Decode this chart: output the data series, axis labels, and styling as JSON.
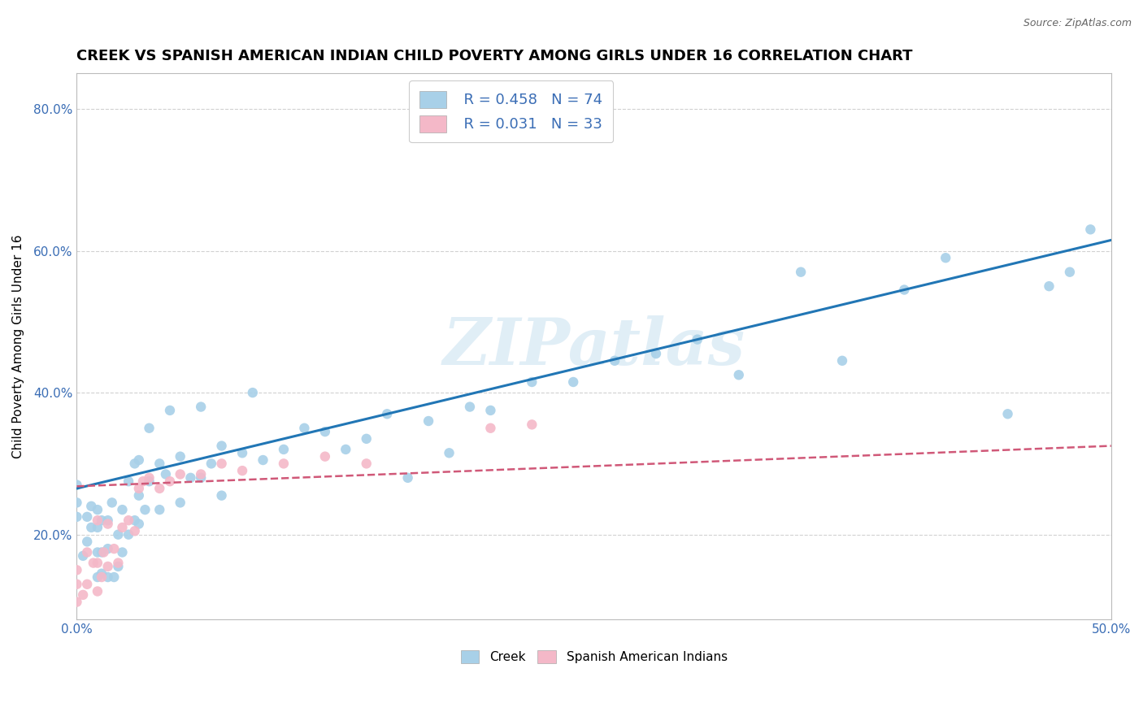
{
  "title": "CREEK VS SPANISH AMERICAN INDIAN CHILD POVERTY AMONG GIRLS UNDER 16 CORRELATION CHART",
  "source": "Source: ZipAtlas.com",
  "ylabel": "Child Poverty Among Girls Under 16",
  "xlim": [
    0.0,
    0.5
  ],
  "ylim": [
    0.08,
    0.85
  ],
  "xticks": [
    0.0,
    0.05,
    0.1,
    0.15,
    0.2,
    0.25,
    0.3,
    0.35,
    0.4,
    0.45,
    0.5
  ],
  "xticklabels": [
    "0.0%",
    "",
    "",
    "",
    "",
    "",
    "",
    "",
    "",
    "",
    "50.0%"
  ],
  "yticks": [
    0.2,
    0.4,
    0.6,
    0.8
  ],
  "yticklabels": [
    "20.0%",
    "40.0%",
    "60.0%",
    "80.0%"
  ],
  "creek_color": "#a8d0e8",
  "sai_color": "#f4b8c8",
  "creek_line_color": "#2176b5",
  "sai_line_color": "#d05878",
  "watermark": "ZIPatlas",
  "legend_R_creek": "R = 0.458",
  "legend_N_creek": "N = 74",
  "legend_R_sai": "R = 0.031",
  "legend_N_sai": "N = 33",
  "creek_line_x0": 0.0,
  "creek_line_y0": 0.265,
  "creek_line_x1": 0.5,
  "creek_line_y1": 0.615,
  "sai_line_x0": 0.0,
  "sai_line_y0": 0.268,
  "sai_line_x1": 0.5,
  "sai_line_y1": 0.325,
  "creek_scatter_x": [
    0.0,
    0.0,
    0.0,
    0.003,
    0.005,
    0.005,
    0.007,
    0.007,
    0.01,
    0.01,
    0.01,
    0.01,
    0.012,
    0.012,
    0.012,
    0.015,
    0.015,
    0.015,
    0.017,
    0.018,
    0.02,
    0.02,
    0.022,
    0.022,
    0.025,
    0.025,
    0.028,
    0.028,
    0.03,
    0.03,
    0.03,
    0.033,
    0.035,
    0.035,
    0.04,
    0.04,
    0.043,
    0.045,
    0.05,
    0.05,
    0.055,
    0.06,
    0.06,
    0.065,
    0.07,
    0.07,
    0.08,
    0.085,
    0.09,
    0.1,
    0.11,
    0.12,
    0.13,
    0.14,
    0.15,
    0.16,
    0.17,
    0.18,
    0.19,
    0.2,
    0.22,
    0.24,
    0.26,
    0.28,
    0.3,
    0.32,
    0.35,
    0.37,
    0.4,
    0.42,
    0.45,
    0.47,
    0.48,
    0.49
  ],
  "creek_scatter_y": [
    0.225,
    0.245,
    0.27,
    0.17,
    0.19,
    0.225,
    0.21,
    0.24,
    0.14,
    0.175,
    0.21,
    0.235,
    0.145,
    0.175,
    0.22,
    0.14,
    0.18,
    0.22,
    0.245,
    0.14,
    0.155,
    0.2,
    0.175,
    0.235,
    0.2,
    0.275,
    0.22,
    0.3,
    0.215,
    0.255,
    0.305,
    0.235,
    0.275,
    0.35,
    0.235,
    0.3,
    0.285,
    0.375,
    0.245,
    0.31,
    0.28,
    0.28,
    0.38,
    0.3,
    0.255,
    0.325,
    0.315,
    0.4,
    0.305,
    0.32,
    0.35,
    0.345,
    0.32,
    0.335,
    0.37,
    0.28,
    0.36,
    0.315,
    0.38,
    0.375,
    0.415,
    0.415,
    0.445,
    0.455,
    0.475,
    0.425,
    0.57,
    0.445,
    0.545,
    0.59,
    0.37,
    0.55,
    0.57,
    0.63
  ],
  "sai_scatter_x": [
    0.0,
    0.0,
    0.0,
    0.003,
    0.005,
    0.005,
    0.008,
    0.01,
    0.01,
    0.01,
    0.012,
    0.013,
    0.015,
    0.015,
    0.018,
    0.02,
    0.022,
    0.025,
    0.028,
    0.03,
    0.032,
    0.035,
    0.04,
    0.045,
    0.05,
    0.06,
    0.07,
    0.08,
    0.1,
    0.12,
    0.14,
    0.2,
    0.22
  ],
  "sai_scatter_y": [
    0.105,
    0.13,
    0.15,
    0.115,
    0.13,
    0.175,
    0.16,
    0.12,
    0.16,
    0.22,
    0.14,
    0.175,
    0.155,
    0.215,
    0.18,
    0.16,
    0.21,
    0.22,
    0.205,
    0.265,
    0.275,
    0.28,
    0.265,
    0.275,
    0.285,
    0.285,
    0.3,
    0.29,
    0.3,
    0.31,
    0.3,
    0.35,
    0.355
  ],
  "background_color": "#ffffff",
  "grid_color": "#cccccc",
  "title_fontsize": 13,
  "axis_label_fontsize": 11,
  "tick_fontsize": 11
}
